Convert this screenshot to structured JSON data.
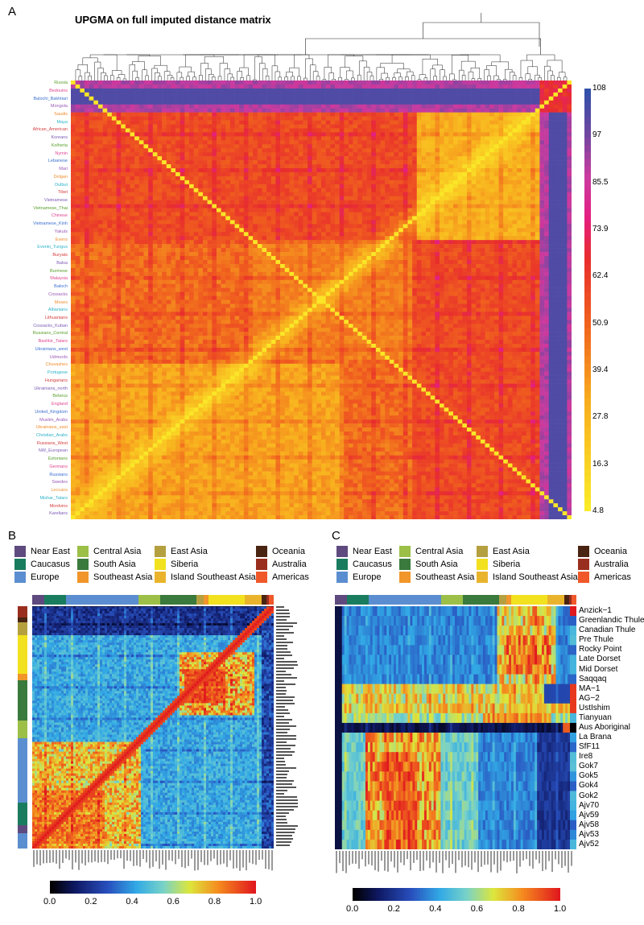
{
  "panel_letters": {
    "a": "A",
    "b": "B",
    "c": "C"
  },
  "panel_a": {
    "title": "UPGMA on full imputed distance matrix",
    "colorbar_ticks": [
      "108",
      "97",
      "85.5",
      "73.9",
      "62.4",
      "50.9",
      "39.4",
      "27.8",
      "16.3",
      "4.8"
    ],
    "row_labels": [
      "Russia",
      "Bedouins",
      "Balochi_Bakhtiari",
      "Mongola",
      "Saudis",
      "Maya",
      "African_American",
      "Koreans",
      "Kolheria",
      "Nymin",
      "Lebanese",
      "Mari",
      "Dolgan",
      "Dulbut",
      "Tibet",
      "Vietnamese",
      "Vietnamese_Thai",
      "Chinese",
      "Vietnamese_Kinh",
      "Yakuts",
      "Evens",
      "Evenki_Tungus",
      "Buryats",
      "Balsa",
      "Burmese",
      "Malaysia",
      "Baloch",
      "Cossacks",
      "Moses",
      "Albanians",
      "Lithuanians",
      "Cossacks_Kuban",
      "Russians_Central",
      "Bashkir_Tatars",
      "Ukrainians_west",
      "Udmurds",
      "Chuvashes",
      "Portugese",
      "Hungarians",
      "Ukrainians_north",
      "Belarus",
      "England",
      "United_Kingdom",
      "Muslim_Arabs",
      "Ukrainians_east",
      "Christian_Arabs",
      "Russians_West",
      "NW_European",
      "Estonians",
      "Germans",
      "Russians",
      "Swedes",
      "Leccans",
      "Mishar_Tatars",
      "Mordvins",
      "Karelians"
    ]
  },
  "legend_groups": [
    {
      "name": "Near East",
      "color": "#5e4a7e"
    },
    {
      "name": "Caucasus",
      "color": "#1a7c5e"
    },
    {
      "name": "Europe",
      "color": "#5b8ed0"
    },
    {
      "name": "Central Asia",
      "color": "#9cbf48"
    },
    {
      "name": "South Asia",
      "color": "#3a7a3c"
    },
    {
      "name": "Southeast Asia",
      "color": "#f0962a"
    },
    {
      "name": "East Asia",
      "color": "#b5a040"
    },
    {
      "name": "Siberia",
      "color": "#f2e11e"
    },
    {
      "name": "Island Southeast Asia",
      "color": "#e9b42c"
    },
    {
      "name": "Oceania",
      "color": "#4a2412"
    },
    {
      "name": "Australia",
      "color": "#9a2e1e"
    },
    {
      "name": "Americas",
      "color": "#f0582a"
    }
  ],
  "panel_b": {
    "colorbar_ticks": [
      "0.0",
      "0.2",
      "0.4",
      "0.6",
      "0.8",
      "1.0"
    ]
  },
  "panel_c": {
    "row_labels": [
      "Anzick−1",
      "Greenlandic Thule",
      "Canadian Thule",
      "Pre Thule",
      "Rocky Point",
      "Late Dorset",
      "Mid Dorset",
      "Saqqaq",
      "MA−1",
      "AG−2",
      "UstIshim",
      "Tianyuan",
      "Aus Aboriginal",
      "La Brana",
      "SfF11",
      "Ire8",
      "Gok7",
      "Gok5",
      "Gok4",
      "Gok2",
      "Ajv70",
      "Ajv59",
      "Ajv58",
      "Ajv53",
      "Ajv52"
    ],
    "colorbar_ticks": [
      "0.0",
      "0.2",
      "0.4",
      "0.6",
      "0.8",
      "1.0"
    ]
  },
  "chart_data": [
    {
      "type": "heatmap",
      "title": "UPGMA on full imputed distance matrix",
      "description_scale": "distance",
      "colorbar_range": [
        4.8,
        108
      ],
      "colorbar_ticks": [
        108,
        97,
        85.5,
        73.9,
        62.4,
        50.9,
        39.4,
        27.8,
        16.3,
        4.8
      ],
      "colormap": "yellow-orange-red-magenta-blue",
      "dendrogram": "top",
      "outgroup_rows": [
        "Russia",
        "Bedouins",
        "Balochi_Bakhtiari",
        "Mongola",
        "Saudis",
        "Maya",
        "African_American",
        "Koreans",
        "Kolheria"
      ]
    },
    {
      "type": "heatmap",
      "panel": "B",
      "colorbar_range": [
        0.0,
        1.0
      ],
      "colorbar_ticks": [
        0.0,
        0.2,
        0.4,
        0.6,
        0.8,
        1.0
      ],
      "colormap": "jet",
      "column_groups_order": [
        "Near East",
        "Caucasus",
        "Europe",
        "Central Asia",
        "South Asia",
        "Southeast Asia",
        "Siberia",
        "Island Southeast Asia",
        "Oceania",
        "Americas"
      ]
    },
    {
      "type": "heatmap",
      "panel": "C",
      "colorbar_range": [
        0.0,
        1.0
      ],
      "colorbar_ticks": [
        0.0,
        0.2,
        0.4,
        0.6,
        0.8,
        1.0
      ],
      "colormap": "jet",
      "rows": [
        "Anzick−1",
        "Greenlandic Thule",
        "Canadian Thule",
        "Pre Thule",
        "Rocky Point",
        "Late Dorset",
        "Mid Dorset",
        "Saqqaq",
        "MA−1",
        "AG−2",
        "UstIshim",
        "Tianyuan",
        "Aus Aboriginal",
        "La Brana",
        "SfF11",
        "Ire8",
        "Gok7",
        "Gok5",
        "Gok4",
        "Gok2",
        "Ajv70",
        "Ajv59",
        "Ajv58",
        "Ajv53",
        "Ajv52"
      ]
    }
  ]
}
